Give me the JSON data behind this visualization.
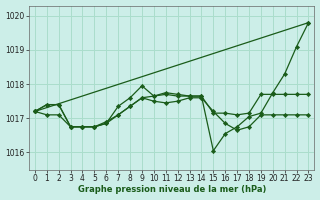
{
  "title": "Graphe pression niveau de la mer (hPa)",
  "bg_color": "#cceee8",
  "grid_color": "#aaddcc",
  "line_color": "#1a5c1a",
  "marker_color": "#1a5c1a",
  "xlim": [
    -0.5,
    23.5
  ],
  "ylim": [
    1015.5,
    1020.3
  ],
  "xticks": [
    0,
    1,
    2,
    3,
    4,
    5,
    6,
    7,
    8,
    9,
    10,
    11,
    12,
    13,
    14,
    15,
    16,
    17,
    18,
    19,
    20,
    21,
    22,
    23
  ],
  "yticks": [
    1016,
    1017,
    1018,
    1019,
    1020
  ],
  "series": [
    [
      1017.2,
      null,
      null,
      null,
      null,
      null,
      null,
      null,
      null,
      null,
      null,
      null,
      null,
      null,
      null,
      null,
      null,
      null,
      null,
      null,
      null,
      null,
      null,
      1019.8
    ],
    [
      1017.2,
      1017.4,
      1017.4,
      1016.75,
      1016.75,
      1016.75,
      1016.85,
      1017.1,
      1017.35,
      1017.6,
      1017.65,
      1017.7,
      1017.65,
      1017.65,
      1017.65,
      1017.15,
      1017.15,
      1017.1,
      1017.15,
      1017.7,
      1017.7,
      1017.7,
      1017.7,
      1017.7
    ],
    [
      1017.2,
      1017.4,
      1017.4,
      1016.75,
      1016.75,
      1016.75,
      1016.85,
      1017.35,
      1017.6,
      1017.95,
      1017.65,
      1017.75,
      1017.7,
      1017.65,
      1017.65,
      1016.05,
      1016.55,
      1016.75,
      1017.05,
      1017.15,
      1017.75,
      1018.3,
      1019.1,
      1019.8
    ],
    [
      1017.2,
      1017.1,
      1017.1,
      1016.75,
      1016.75,
      1016.75,
      1016.9,
      1017.1,
      1017.35,
      1017.6,
      1017.5,
      1017.45,
      1017.5,
      1017.6,
      1017.6,
      1017.2,
      1016.85,
      1016.65,
      1016.75,
      1017.1,
      1017.1,
      1017.1,
      1017.1,
      1017.1
    ]
  ]
}
